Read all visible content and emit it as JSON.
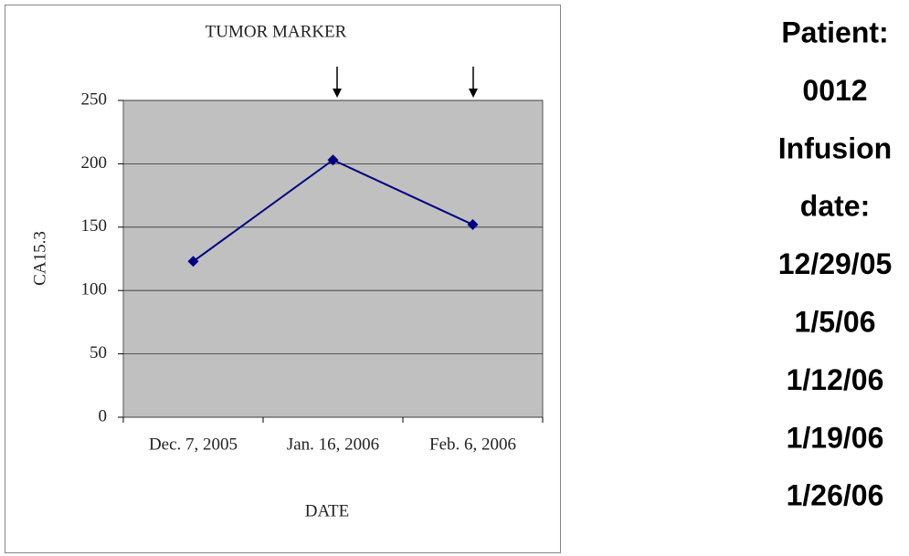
{
  "chart_data": {
    "type": "line",
    "title": "TUMOR MARKER",
    "x_label": "DATE",
    "y_label": "CA15.3",
    "categories": [
      "Dec. 7, 2005",
      "Jan. 16, 2006",
      "Feb. 6, 2006"
    ],
    "series": [
      {
        "name": "CA15.3",
        "color": "#000080",
        "values": [
          123,
          203,
          152
        ]
      }
    ],
    "ylim": [
      0,
      250
    ],
    "yticks": [
      0,
      50,
      100,
      150,
      200,
      250
    ],
    "grid": true,
    "legend": false
  },
  "sidebar": {
    "lines": [
      "Patient:",
      "0012",
      "Infusion",
      "date:",
      "12/29/05",
      "1/5/06",
      "1/12/06",
      "1/19/06",
      "1/26/06"
    ]
  }
}
